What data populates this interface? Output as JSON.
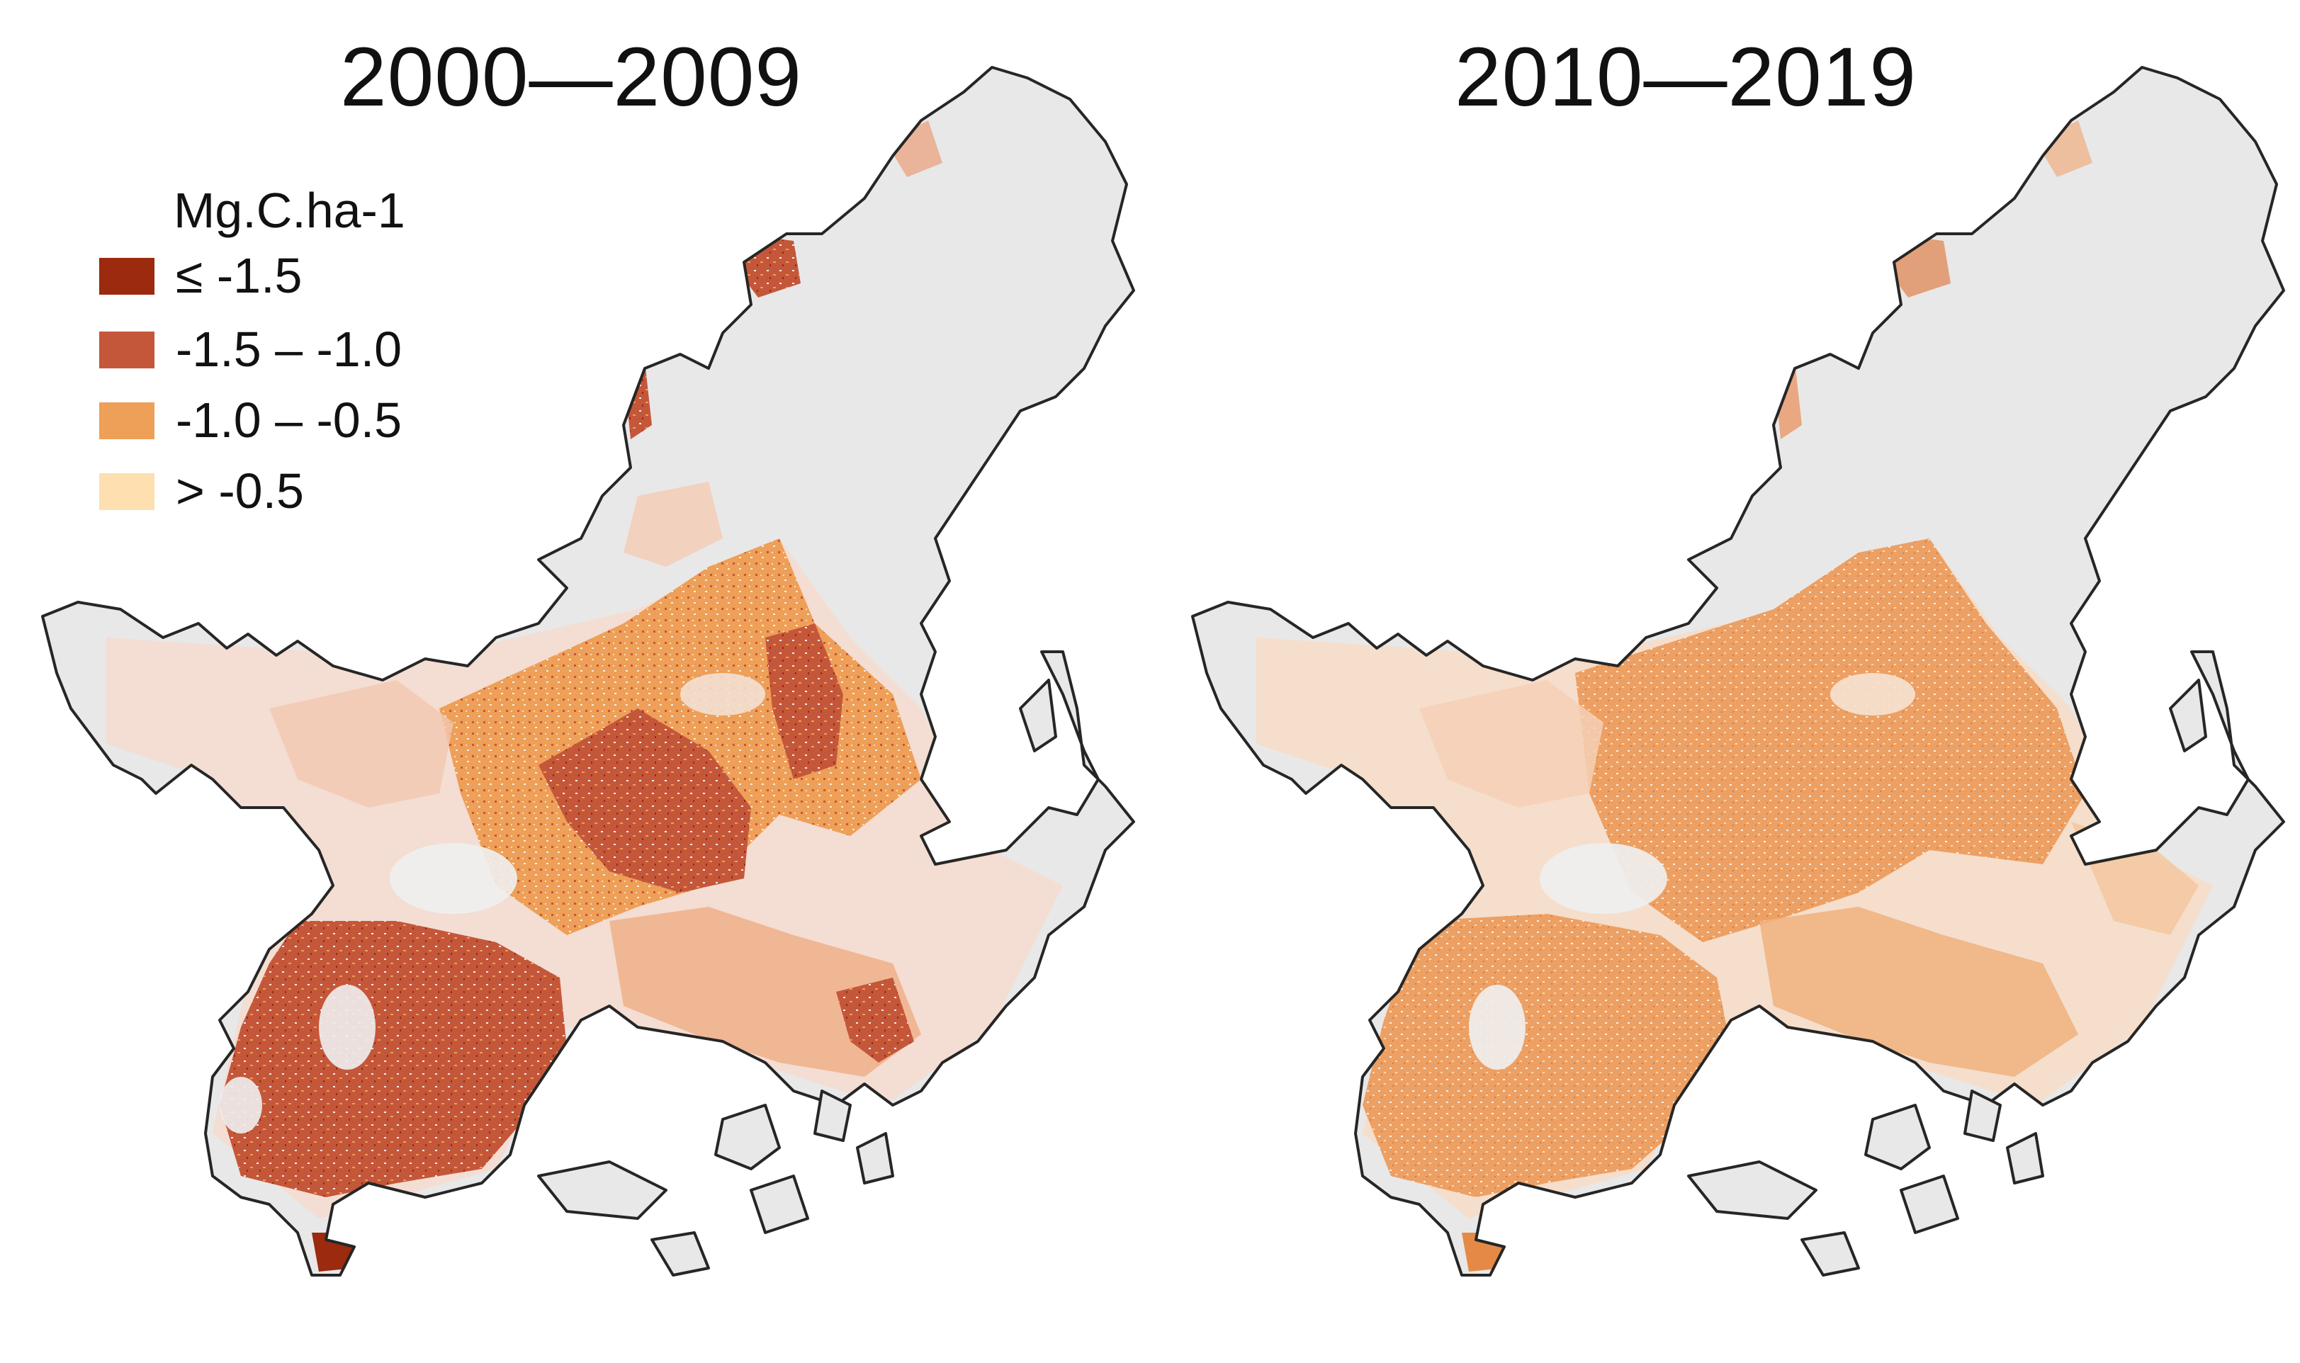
{
  "panels": [
    {
      "title": "2000—2009"
    },
    {
      "title": "2010—2019"
    }
  ],
  "legend": {
    "title": "Mg.C.ha-1",
    "items": [
      {
        "label": "≤ -1.5",
        "color": "#9b2a0e"
      },
      {
        "label": "-1.5 – -1.0",
        "color": "#c4573a"
      },
      {
        "label": "-1.0 – -0.5",
        "color": "#ee9f58"
      },
      {
        "label": "> -0.5",
        "color": "#fedfb0"
      }
    ]
  },
  "colors": {
    "no_data": "#e8e8e8",
    "outline": "#262626"
  }
}
